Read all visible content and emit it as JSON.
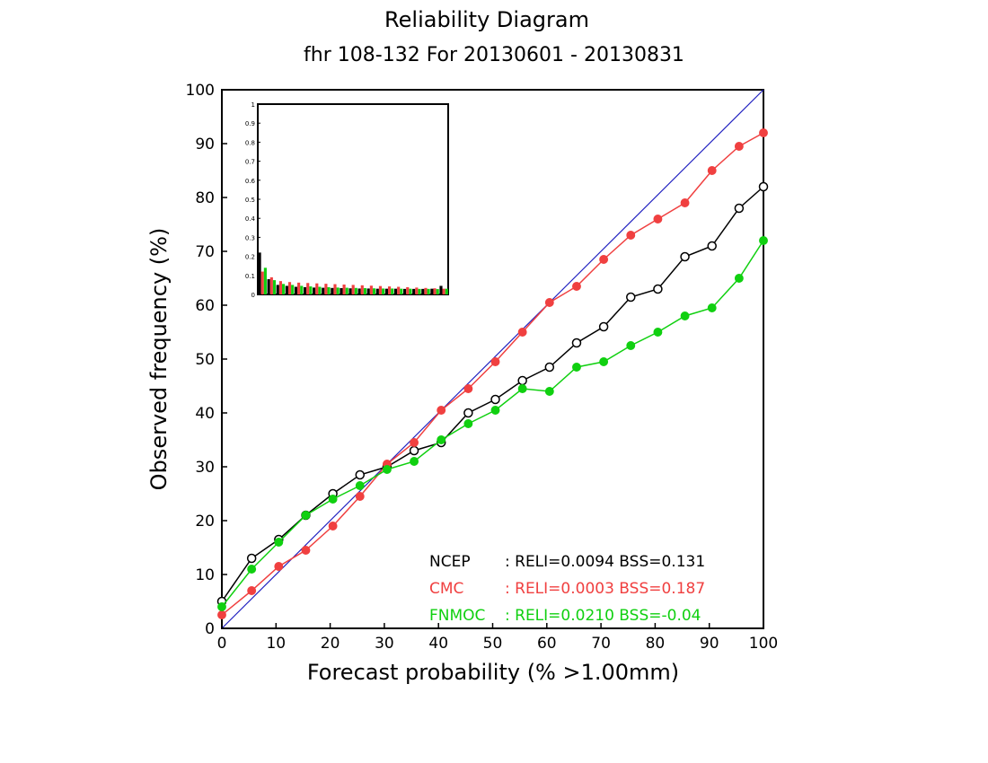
{
  "chart_data": {
    "type": "line",
    "title": "Reliability Diagram",
    "subtitle": "fhr 108-132 For 20130601 - 20130831",
    "xlabel": "Forecast probability (% >1.00mm)",
    "ylabel": "Observed frequency (%)",
    "xlim": [
      0,
      100
    ],
    "ylim": [
      0,
      100
    ],
    "xticks": [
      0,
      10,
      20,
      30,
      40,
      50,
      60,
      70,
      80,
      90,
      100
    ],
    "yticks": [
      0,
      10,
      20,
      30,
      40,
      50,
      60,
      70,
      80,
      90,
      100
    ],
    "grid": false,
    "diagonal_color": "#2020c0",
    "series": [
      {
        "name": "NCEP",
        "color": "#000000",
        "marker": "open-circle",
        "x": [
          0,
          5.5,
          10.5,
          15.5,
          20.5,
          25.5,
          30.5,
          35.5,
          40.5,
          45.5,
          50.5,
          55.5,
          60.5,
          65.5,
          70.5,
          75.5,
          80.5,
          85.5,
          90.5,
          95.5,
          100
        ],
        "y": [
          5,
          13,
          16.5,
          21,
          25,
          28.5,
          30,
          33,
          34.5,
          40,
          42.5,
          46,
          48.5,
          53,
          56,
          61.5,
          63,
          69,
          71,
          78,
          82
        ]
      },
      {
        "name": "CMC",
        "color": "#f04040",
        "marker": "filled-circle",
        "x": [
          0,
          5.5,
          10.5,
          15.5,
          20.5,
          25.5,
          30.5,
          35.5,
          40.5,
          45.5,
          50.5,
          55.5,
          60.5,
          65.5,
          70.5,
          75.5,
          80.5,
          85.5,
          90.5,
          95.5,
          100
        ],
        "y": [
          2.5,
          7,
          11.5,
          14.5,
          19,
          24.5,
          30.5,
          34.5,
          40.5,
          44.5,
          49.5,
          55,
          60.5,
          63.5,
          68.5,
          73,
          76,
          79,
          85,
          89.5,
          92
        ]
      },
      {
        "name": "FNMOC",
        "color": "#10d010",
        "marker": "filled-circle",
        "x": [
          0,
          5.5,
          10.5,
          15.5,
          20.5,
          25.5,
          30.5,
          35.5,
          40.5,
          45.5,
          50.5,
          55.5,
          60.5,
          65.5,
          70.5,
          75.5,
          80.5,
          85.5,
          90.5,
          95.5,
          100
        ],
        "y": [
          4,
          11,
          16,
          21,
          24,
          26.5,
          29.5,
          31,
          35,
          38,
          40.5,
          44.5,
          44,
          48.5,
          49.5,
          52.5,
          55,
          58,
          59.5,
          65,
          72
        ]
      }
    ],
    "legend_entries": [
      {
        "name": "NCEP",
        "text": ": RELI=0.0094 BSS=0.131",
        "color": "#000000"
      },
      {
        "name": "CMC",
        "text": ": RELI=0.0003 BSS=0.187",
        "color": "#f04040"
      },
      {
        "name": "FNMOC",
        "text": ": RELI=0.0210 BSS=-0.04",
        "color": "#10d010"
      }
    ],
    "legend_position": "bottom-right",
    "inset": {
      "type": "bar",
      "description_position": "top-left",
      "ylim": [
        0,
        1
      ],
      "yticks": [
        "0",
        "0.1",
        "0.2",
        "0.3",
        "0.4",
        "0.5",
        "0.6",
        "0.7",
        "0.8",
        "0.9",
        "1"
      ],
      "series_colors": [
        "#000000",
        "#f04040",
        "#10d010"
      ],
      "values": [
        [
          0.22,
          0.08,
          0.05,
          0.045,
          0.04,
          0.038,
          0.036,
          0.035,
          0.034,
          0.033,
          0.032,
          0.031,
          0.031,
          0.03,
          0.03,
          0.03,
          0.029,
          0.029,
          0.029,
          0.03,
          0.045
        ],
        [
          0.12,
          0.09,
          0.07,
          0.065,
          0.062,
          0.06,
          0.058,
          0.056,
          0.054,
          0.052,
          0.05,
          0.048,
          0.046,
          0.044,
          0.042,
          0.04,
          0.038,
          0.036,
          0.034,
          0.032,
          0.03
        ],
        [
          0.14,
          0.075,
          0.055,
          0.05,
          0.045,
          0.042,
          0.04,
          0.038,
          0.036,
          0.035,
          0.034,
          0.033,
          0.032,
          0.031,
          0.031,
          0.03,
          0.03,
          0.029,
          0.029,
          0.028,
          0.03
        ]
      ]
    }
  }
}
